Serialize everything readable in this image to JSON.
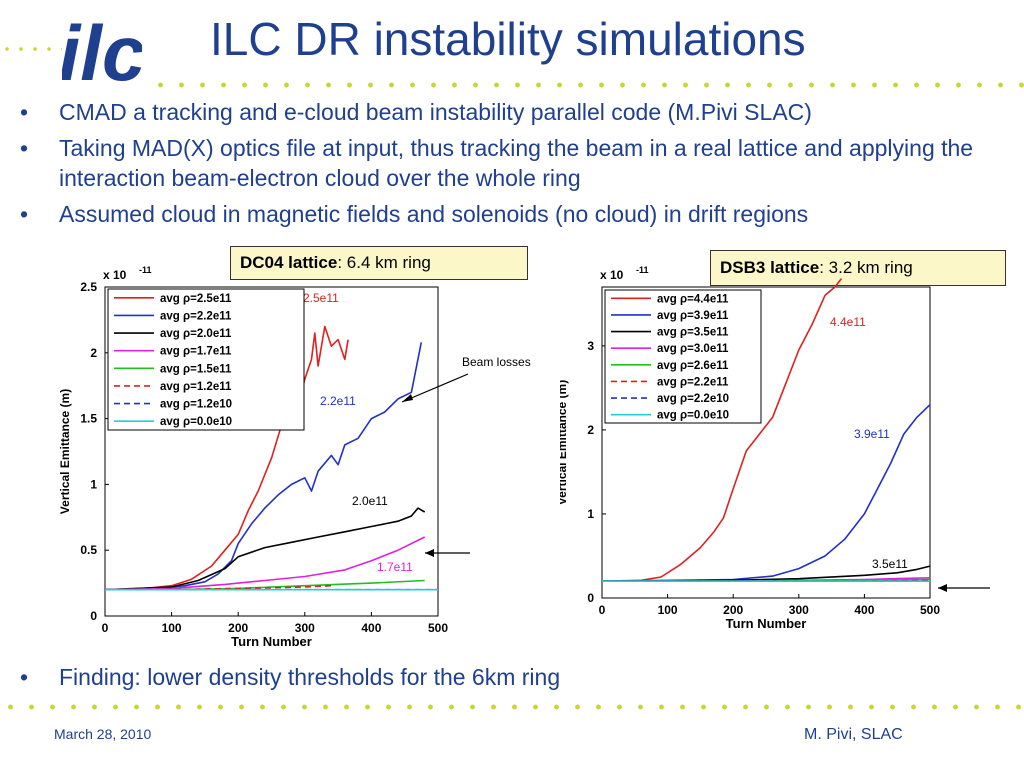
{
  "title": "ILC DR instability simulations",
  "logo_text": "ilc",
  "bullets": [
    "CMAD a tracking and e-cloud beam instability parallel code (M.Pivi SLAC)",
    "Taking MAD(X) optics file at input, thus tracking the beam in a real lattice and applying the interaction beam-electron cloud over the whole ring",
    "Assumed cloud in magnetic fields and solenoids (no cloud) in drift regions"
  ],
  "finding": "Finding: lower density thresholds for the 6km ring",
  "bullet_char": "•",
  "footer": {
    "date": "March 28, 2010",
    "author": "M. Pivi, SLAC"
  },
  "colors": {
    "brand": "#1f3f8f",
    "dots": "#c9d632",
    "box": "#fbf7c9"
  },
  "chart_data": [
    {
      "type": "line",
      "box": {
        "bold": "DC04 lattice",
        "rest": ": 6.4 km ring"
      },
      "xlabel": "Turn Number",
      "ylabel": "Vertical Emittance (m)",
      "scale_label": "x 10",
      "scale_exp": "-11",
      "xlim": [
        0,
        500
      ],
      "ylim": [
        0,
        2.5
      ],
      "xticks": [
        "0",
        "100",
        "200",
        "300",
        "400",
        "500"
      ],
      "yticks": [
        "0",
        "0.5",
        "1",
        "1.5",
        "2",
        "2.5"
      ],
      "legend_position": "top-left",
      "series": [
        {
          "name": "avg ρ=2.5e11",
          "color": "#e02020",
          "dash": "solid",
          "label": "2.5e11",
          "x": [
            0,
            60,
            100,
            130,
            160,
            180,
            200,
            215,
            230,
            250,
            265,
            275,
            290,
            300,
            310,
            315,
            320,
            330,
            340,
            350,
            360,
            365
          ],
          "y": [
            0.2,
            0.21,
            0.23,
            0.28,
            0.38,
            0.5,
            0.62,
            0.8,
            0.95,
            1.2,
            1.45,
            1.55,
            1.6,
            1.8,
            1.95,
            2.15,
            1.9,
            2.2,
            2.05,
            2.1,
            1.95,
            2.1
          ]
        },
        {
          "name": "avg ρ=2.2e11",
          "color": "#2030c8",
          "dash": "solid",
          "label": "2.2e11",
          "x": [
            0,
            80,
            120,
            150,
            170,
            190,
            200,
            220,
            240,
            260,
            280,
            300,
            310,
            320,
            340,
            350,
            360,
            380,
            400,
            420,
            440,
            460,
            475
          ],
          "y": [
            0.2,
            0.21,
            0.23,
            0.26,
            0.32,
            0.42,
            0.55,
            0.7,
            0.82,
            0.92,
            1.0,
            1.05,
            0.95,
            1.1,
            1.22,
            1.15,
            1.3,
            1.35,
            1.5,
            1.55,
            1.65,
            1.7,
            2.08
          ]
        },
        {
          "name": "avg ρ=2.0e11",
          "color": "#000000",
          "dash": "solid",
          "label": "2.0e11",
          "x": [
            0,
            100,
            140,
            180,
            200,
            240,
            280,
            320,
            360,
            400,
            420,
            440,
            460,
            470,
            480
          ],
          "y": [
            0.2,
            0.22,
            0.27,
            0.36,
            0.45,
            0.52,
            0.56,
            0.6,
            0.64,
            0.68,
            0.7,
            0.72,
            0.76,
            0.82,
            0.79
          ]
        },
        {
          "name": "avg ρ=1.7e11",
          "color": "#e020e0",
          "dash": "solid",
          "label": "1.7e11",
          "x": [
            0,
            100,
            180,
            240,
            300,
            360,
            400,
            440,
            480
          ],
          "y": [
            0.2,
            0.21,
            0.24,
            0.27,
            0.3,
            0.35,
            0.42,
            0.5,
            0.6
          ]
        },
        {
          "name": "avg ρ=1.5e11",
          "color": "#20c020",
          "dash": "solid",
          "x": [
            0,
            100,
            200,
            300,
            400,
            480
          ],
          "y": [
            0.2,
            0.2,
            0.21,
            0.23,
            0.25,
            0.27
          ]
        },
        {
          "name": "avg ρ=1.2e11",
          "color": "#e02020",
          "dash": "6,4",
          "x": [
            0,
            100,
            200,
            300,
            340
          ],
          "y": [
            0.2,
            0.2,
            0.21,
            0.22,
            0.23
          ]
        },
        {
          "name": "avg ρ=1.2e10",
          "color": "#2030c8",
          "dash": "6,4",
          "x": [
            0,
            100,
            200,
            300,
            400,
            500
          ],
          "y": [
            0.2,
            0.2,
            0.2,
            0.2,
            0.2,
            0.2
          ]
        },
        {
          "name": "avg ρ=0.0e10",
          "color": "#20d0d0",
          "dash": "solid",
          "x": [
            0,
            100,
            200,
            300,
            400,
            500
          ],
          "y": [
            0.2,
            0.2,
            0.2,
            0.2,
            0.2,
            0.2
          ]
        }
      ],
      "annotations": [
        "Beam losses"
      ]
    },
    {
      "type": "line",
      "box": {
        "bold": "DSB3 lattice",
        "rest": ": 3.2 km ring"
      },
      "xlabel": "Turn Number",
      "ylabel": "Vertical Emittance (m)",
      "scale_label": "x 10",
      "scale_exp": "-11",
      "xlim": [
        0,
        500
      ],
      "ylim": [
        0,
        3.7
      ],
      "xticks": [
        "0",
        "100",
        "200",
        "300",
        "400",
        "500"
      ],
      "yticks": [
        "0",
        "1",
        "2",
        "3"
      ],
      "legend_position": "top-left",
      "series": [
        {
          "name": "avg ρ=4.4e11",
          "color": "#e02020",
          "dash": "solid",
          "label": "4.4e11",
          "x": [
            0,
            60,
            90,
            120,
            150,
            170,
            185,
            200,
            220,
            240,
            260,
            280,
            300,
            320,
            340,
            355,
            365
          ],
          "y": [
            0.2,
            0.21,
            0.25,
            0.4,
            0.6,
            0.78,
            0.95,
            1.3,
            1.75,
            1.95,
            2.15,
            2.55,
            2.95,
            3.25,
            3.6,
            3.7,
            3.8
          ]
        },
        {
          "name": "avg ρ=3.9e11",
          "color": "#2030c8",
          "dash": "solid",
          "label": "3.9e11",
          "x": [
            0,
            200,
            260,
            300,
            340,
            370,
            400,
            420,
            440,
            460,
            480,
            500
          ],
          "y": [
            0.2,
            0.22,
            0.26,
            0.35,
            0.5,
            0.7,
            1.0,
            1.3,
            1.6,
            1.95,
            2.15,
            2.3
          ]
        },
        {
          "name": "avg ρ=3.5e11",
          "color": "#000000",
          "dash": "solid",
          "label": "3.5e11",
          "x": [
            0,
            100,
            200,
            300,
            400,
            450,
            480,
            500
          ],
          "y": [
            0.2,
            0.2,
            0.21,
            0.23,
            0.27,
            0.3,
            0.34,
            0.38
          ]
        },
        {
          "name": "avg ρ=3.0e11",
          "color": "#e020e0",
          "dash": "solid",
          "x": [
            0,
            200,
            400,
            500
          ],
          "y": [
            0.2,
            0.2,
            0.22,
            0.24
          ]
        },
        {
          "name": "avg ρ=2.6e11",
          "color": "#20c020",
          "dash": "solid",
          "x": [
            0,
            200,
            400,
            500
          ],
          "y": [
            0.2,
            0.2,
            0.21,
            0.22
          ]
        },
        {
          "name": "avg ρ=2.2e11",
          "color": "#e02020",
          "dash": "6,4",
          "x": [
            0,
            200,
            400,
            500
          ],
          "y": [
            0.2,
            0.2,
            0.2,
            0.21
          ]
        },
        {
          "name": "avg ρ=2.2e10",
          "color": "#2030c8",
          "dash": "6,4",
          "x": [
            0,
            250,
            500
          ],
          "y": [
            0.2,
            0.2,
            0.2
          ]
        },
        {
          "name": "avg ρ=0.0e10",
          "color": "#20d0d0",
          "dash": "solid",
          "x": [
            0,
            250,
            500
          ],
          "y": [
            0.2,
            0.2,
            0.2
          ]
        }
      ]
    }
  ]
}
